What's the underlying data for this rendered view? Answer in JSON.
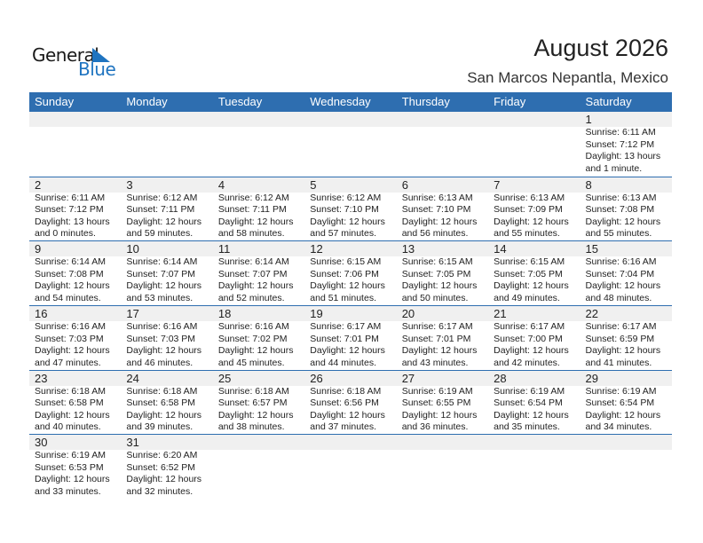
{
  "logo": {
    "text_general": "General",
    "text_blue": "Blue"
  },
  "title": "August 2026",
  "location": "San Marcos Nepantla, Mexico",
  "colors": {
    "header": "#2e6eb0",
    "band": "#f0f0f0",
    "logo_blue": "#1f74c0"
  },
  "weekdays": [
    "Sunday",
    "Monday",
    "Tuesday",
    "Wednesday",
    "Thursday",
    "Friday",
    "Saturday"
  ],
  "weeks": [
    [
      null,
      null,
      null,
      null,
      null,
      null,
      {
        "day": "1",
        "sunrise": "Sunrise: 6:11 AM",
        "sunset": "Sunset: 7:12 PM",
        "daylight": "Daylight: 13 hours",
        "minutes": "and 1 minute."
      }
    ],
    [
      {
        "day": "2",
        "sunrise": "Sunrise: 6:11 AM",
        "sunset": "Sunset: 7:12 PM",
        "daylight": "Daylight: 13 hours",
        "minutes": "and 0 minutes."
      },
      {
        "day": "3",
        "sunrise": "Sunrise: 6:12 AM",
        "sunset": "Sunset: 7:11 PM",
        "daylight": "Daylight: 12 hours",
        "minutes": "and 59 minutes."
      },
      {
        "day": "4",
        "sunrise": "Sunrise: 6:12 AM",
        "sunset": "Sunset: 7:11 PM",
        "daylight": "Daylight: 12 hours",
        "minutes": "and 58 minutes."
      },
      {
        "day": "5",
        "sunrise": "Sunrise: 6:12 AM",
        "sunset": "Sunset: 7:10 PM",
        "daylight": "Daylight: 12 hours",
        "minutes": "and 57 minutes."
      },
      {
        "day": "6",
        "sunrise": "Sunrise: 6:13 AM",
        "sunset": "Sunset: 7:10 PM",
        "daylight": "Daylight: 12 hours",
        "minutes": "and 56 minutes."
      },
      {
        "day": "7",
        "sunrise": "Sunrise: 6:13 AM",
        "sunset": "Sunset: 7:09 PM",
        "daylight": "Daylight: 12 hours",
        "minutes": "and 55 minutes."
      },
      {
        "day": "8",
        "sunrise": "Sunrise: 6:13 AM",
        "sunset": "Sunset: 7:08 PM",
        "daylight": "Daylight: 12 hours",
        "minutes": "and 55 minutes."
      }
    ],
    [
      {
        "day": "9",
        "sunrise": "Sunrise: 6:14 AM",
        "sunset": "Sunset: 7:08 PM",
        "daylight": "Daylight: 12 hours",
        "minutes": "and 54 minutes."
      },
      {
        "day": "10",
        "sunrise": "Sunrise: 6:14 AM",
        "sunset": "Sunset: 7:07 PM",
        "daylight": "Daylight: 12 hours",
        "minutes": "and 53 minutes."
      },
      {
        "day": "11",
        "sunrise": "Sunrise: 6:14 AM",
        "sunset": "Sunset: 7:07 PM",
        "daylight": "Daylight: 12 hours",
        "minutes": "and 52 minutes."
      },
      {
        "day": "12",
        "sunrise": "Sunrise: 6:15 AM",
        "sunset": "Sunset: 7:06 PM",
        "daylight": "Daylight: 12 hours",
        "minutes": "and 51 minutes."
      },
      {
        "day": "13",
        "sunrise": "Sunrise: 6:15 AM",
        "sunset": "Sunset: 7:05 PM",
        "daylight": "Daylight: 12 hours",
        "minutes": "and 50 minutes."
      },
      {
        "day": "14",
        "sunrise": "Sunrise: 6:15 AM",
        "sunset": "Sunset: 7:05 PM",
        "daylight": "Daylight: 12 hours",
        "minutes": "and 49 minutes."
      },
      {
        "day": "15",
        "sunrise": "Sunrise: 6:16 AM",
        "sunset": "Sunset: 7:04 PM",
        "daylight": "Daylight: 12 hours",
        "minutes": "and 48 minutes."
      }
    ],
    [
      {
        "day": "16",
        "sunrise": "Sunrise: 6:16 AM",
        "sunset": "Sunset: 7:03 PM",
        "daylight": "Daylight: 12 hours",
        "minutes": "and 47 minutes."
      },
      {
        "day": "17",
        "sunrise": "Sunrise: 6:16 AM",
        "sunset": "Sunset: 7:03 PM",
        "daylight": "Daylight: 12 hours",
        "minutes": "and 46 minutes."
      },
      {
        "day": "18",
        "sunrise": "Sunrise: 6:16 AM",
        "sunset": "Sunset: 7:02 PM",
        "daylight": "Daylight: 12 hours",
        "minutes": "and 45 minutes."
      },
      {
        "day": "19",
        "sunrise": "Sunrise: 6:17 AM",
        "sunset": "Sunset: 7:01 PM",
        "daylight": "Daylight: 12 hours",
        "minutes": "and 44 minutes."
      },
      {
        "day": "20",
        "sunrise": "Sunrise: 6:17 AM",
        "sunset": "Sunset: 7:01 PM",
        "daylight": "Daylight: 12 hours",
        "minutes": "and 43 minutes."
      },
      {
        "day": "21",
        "sunrise": "Sunrise: 6:17 AM",
        "sunset": "Sunset: 7:00 PM",
        "daylight": "Daylight: 12 hours",
        "minutes": "and 42 minutes."
      },
      {
        "day": "22",
        "sunrise": "Sunrise: 6:17 AM",
        "sunset": "Sunset: 6:59 PM",
        "daylight": "Daylight: 12 hours",
        "minutes": "and 41 minutes."
      }
    ],
    [
      {
        "day": "23",
        "sunrise": "Sunrise: 6:18 AM",
        "sunset": "Sunset: 6:58 PM",
        "daylight": "Daylight: 12 hours",
        "minutes": "and 40 minutes."
      },
      {
        "day": "24",
        "sunrise": "Sunrise: 6:18 AM",
        "sunset": "Sunset: 6:58 PM",
        "daylight": "Daylight: 12 hours",
        "minutes": "and 39 minutes."
      },
      {
        "day": "25",
        "sunrise": "Sunrise: 6:18 AM",
        "sunset": "Sunset: 6:57 PM",
        "daylight": "Daylight: 12 hours",
        "minutes": "and 38 minutes."
      },
      {
        "day": "26",
        "sunrise": "Sunrise: 6:18 AM",
        "sunset": "Sunset: 6:56 PM",
        "daylight": "Daylight: 12 hours",
        "minutes": "and 37 minutes."
      },
      {
        "day": "27",
        "sunrise": "Sunrise: 6:19 AM",
        "sunset": "Sunset: 6:55 PM",
        "daylight": "Daylight: 12 hours",
        "minutes": "and 36 minutes."
      },
      {
        "day": "28",
        "sunrise": "Sunrise: 6:19 AM",
        "sunset": "Sunset: 6:54 PM",
        "daylight": "Daylight: 12 hours",
        "minutes": "and 35 minutes."
      },
      {
        "day": "29",
        "sunrise": "Sunrise: 6:19 AM",
        "sunset": "Sunset: 6:54 PM",
        "daylight": "Daylight: 12 hours",
        "minutes": "and 34 minutes."
      }
    ],
    [
      {
        "day": "30",
        "sunrise": "Sunrise: 6:19 AM",
        "sunset": "Sunset: 6:53 PM",
        "daylight": "Daylight: 12 hours",
        "minutes": "and 33 minutes."
      },
      {
        "day": "31",
        "sunrise": "Sunrise: 6:20 AM",
        "sunset": "Sunset: 6:52 PM",
        "daylight": "Daylight: 12 hours",
        "minutes": "and 32 minutes."
      },
      null,
      null,
      null,
      null,
      null
    ]
  ]
}
